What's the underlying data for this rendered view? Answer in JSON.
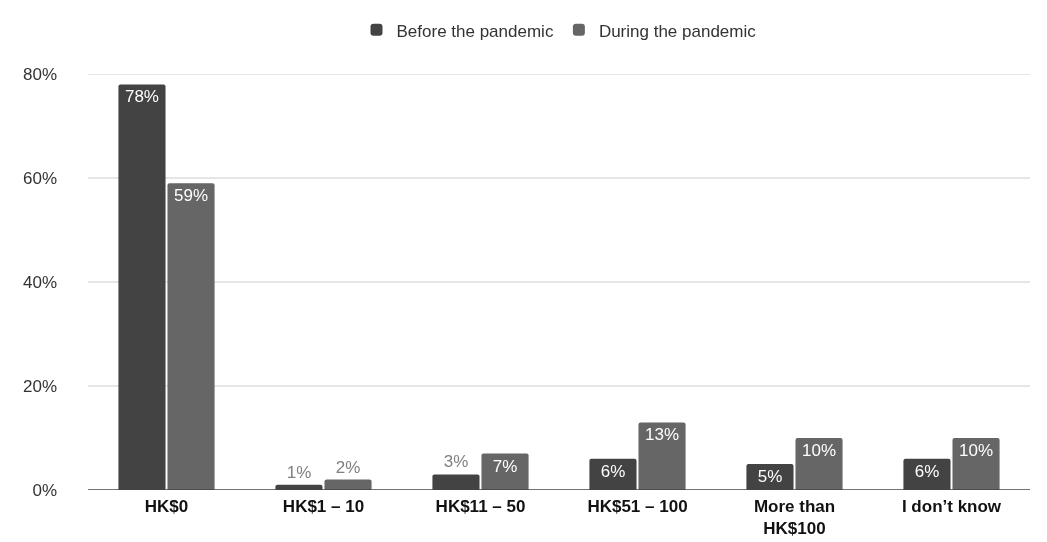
{
  "chart_data": {
    "type": "bar",
    "categories": [
      "HK$0",
      "HK$1 – 10",
      "HK$11 – 50",
      "HK$51 – 100",
      "More than HK$100",
      "I don’t know"
    ],
    "series": [
      {
        "name": "Before the pandemic",
        "color": "#434343",
        "values": [
          78,
          1,
          3,
          6,
          5,
          6
        ],
        "value_labels": [
          "78%",
          "1%",
          "3%",
          "6%",
          "5%",
          "6%"
        ]
      },
      {
        "name": "During the pandemic",
        "color": "#666666",
        "values": [
          59,
          2,
          7,
          13,
          10,
          10
        ],
        "value_labels": [
          "59%",
          "2%",
          "7%",
          "13%",
          "10%",
          "10%"
        ]
      }
    ],
    "ylim": [
      0,
      80
    ],
    "yticks": [
      {
        "value": 0,
        "label": "0%"
      },
      {
        "value": 20,
        "label": "20%"
      },
      {
        "value": 40,
        "label": "40%"
      },
      {
        "value": 60,
        "label": "60%"
      },
      {
        "value": 80,
        "label": "80%"
      }
    ],
    "grid": "y",
    "legend": "top"
  }
}
